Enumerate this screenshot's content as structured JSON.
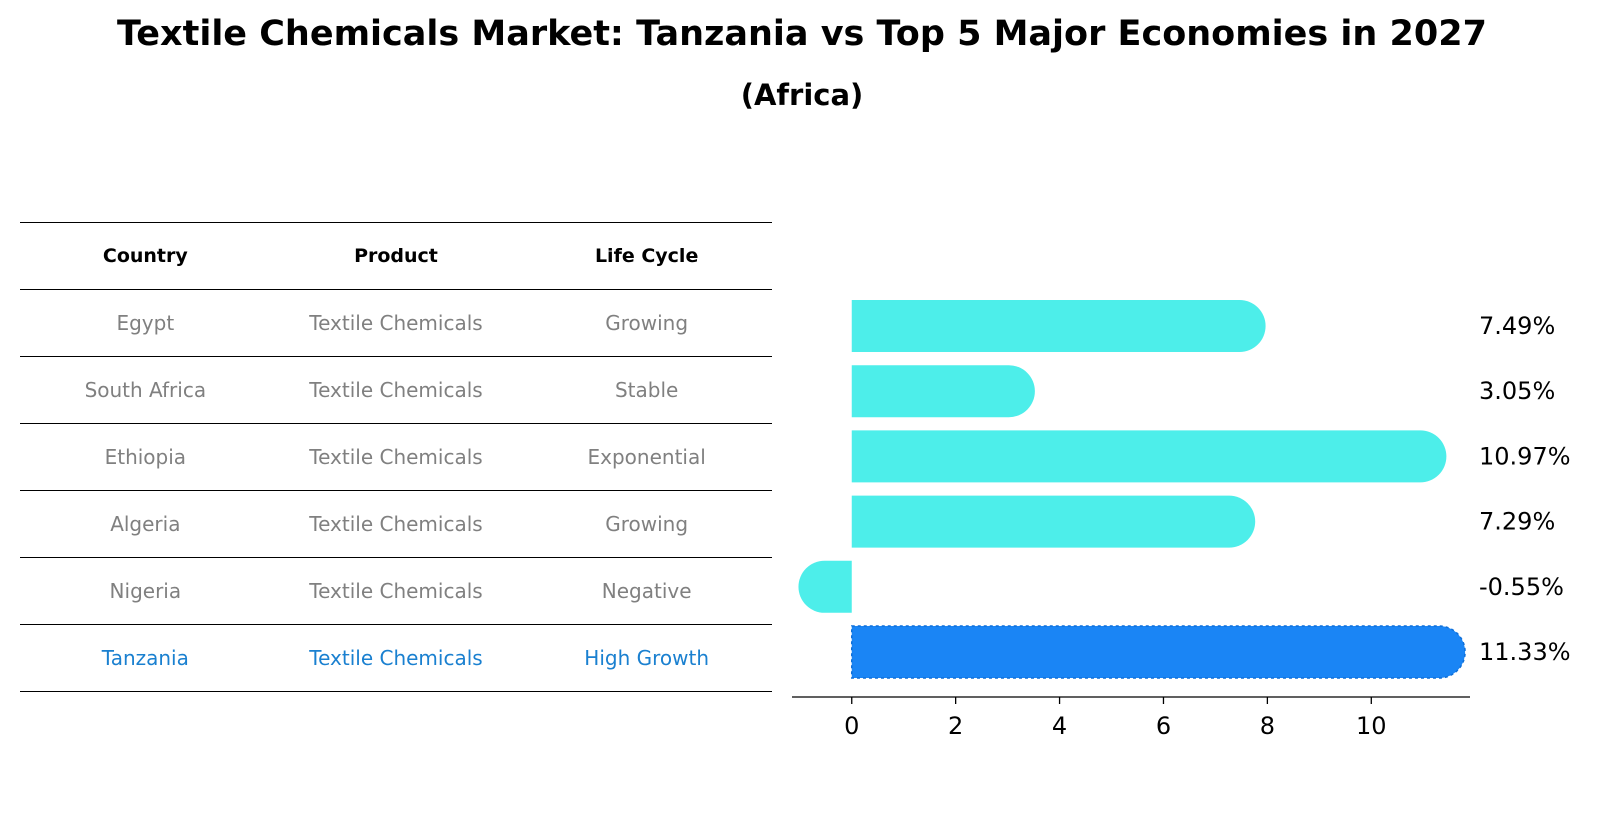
{
  "title": "Textile Chemicals Market: Tanzania vs Top 5 Major Economies in 2027",
  "subtitle": "(Africa)",
  "table": {
    "headers": [
      "Country",
      "Product",
      "Life Cycle"
    ],
    "rows": [
      [
        "Egypt",
        "Textile Chemicals",
        "Growing"
      ],
      [
        "South Africa",
        "Textile Chemicals",
        "Stable"
      ],
      [
        "Ethiopia",
        "Textile Chemicals",
        "Exponential"
      ],
      [
        "Algeria",
        "Textile Chemicals",
        "Growing"
      ],
      [
        "Nigeria",
        "Textile Chemicals",
        "Negative"
      ],
      [
        "Tanzania",
        "Textile Chemicals",
        "High Growth"
      ]
    ]
  },
  "colors": {
    "bar": "#4deeea",
    "highlight": "#1a85f5",
    "text_muted": "#808080",
    "text_highlight": "#1a80d0"
  },
  "chart_data": {
    "type": "bar",
    "orientation": "horizontal",
    "categories": [
      "Egypt",
      "South Africa",
      "Ethiopia",
      "Algeria",
      "Nigeria",
      "Tanzania"
    ],
    "values": [
      7.49,
      3.05,
      10.97,
      7.29,
      -0.55,
      11.33
    ],
    "labels": [
      "7.49%",
      "3.05%",
      "10.97%",
      "7.29%",
      "-0.55%",
      "11.33%"
    ],
    "highlight": "Tanzania",
    "xticks": [
      0,
      2,
      4,
      6,
      8,
      10
    ],
    "xlim": [
      -1.15,
      11.9
    ],
    "title": "",
    "xlabel": "",
    "ylabel": ""
  }
}
